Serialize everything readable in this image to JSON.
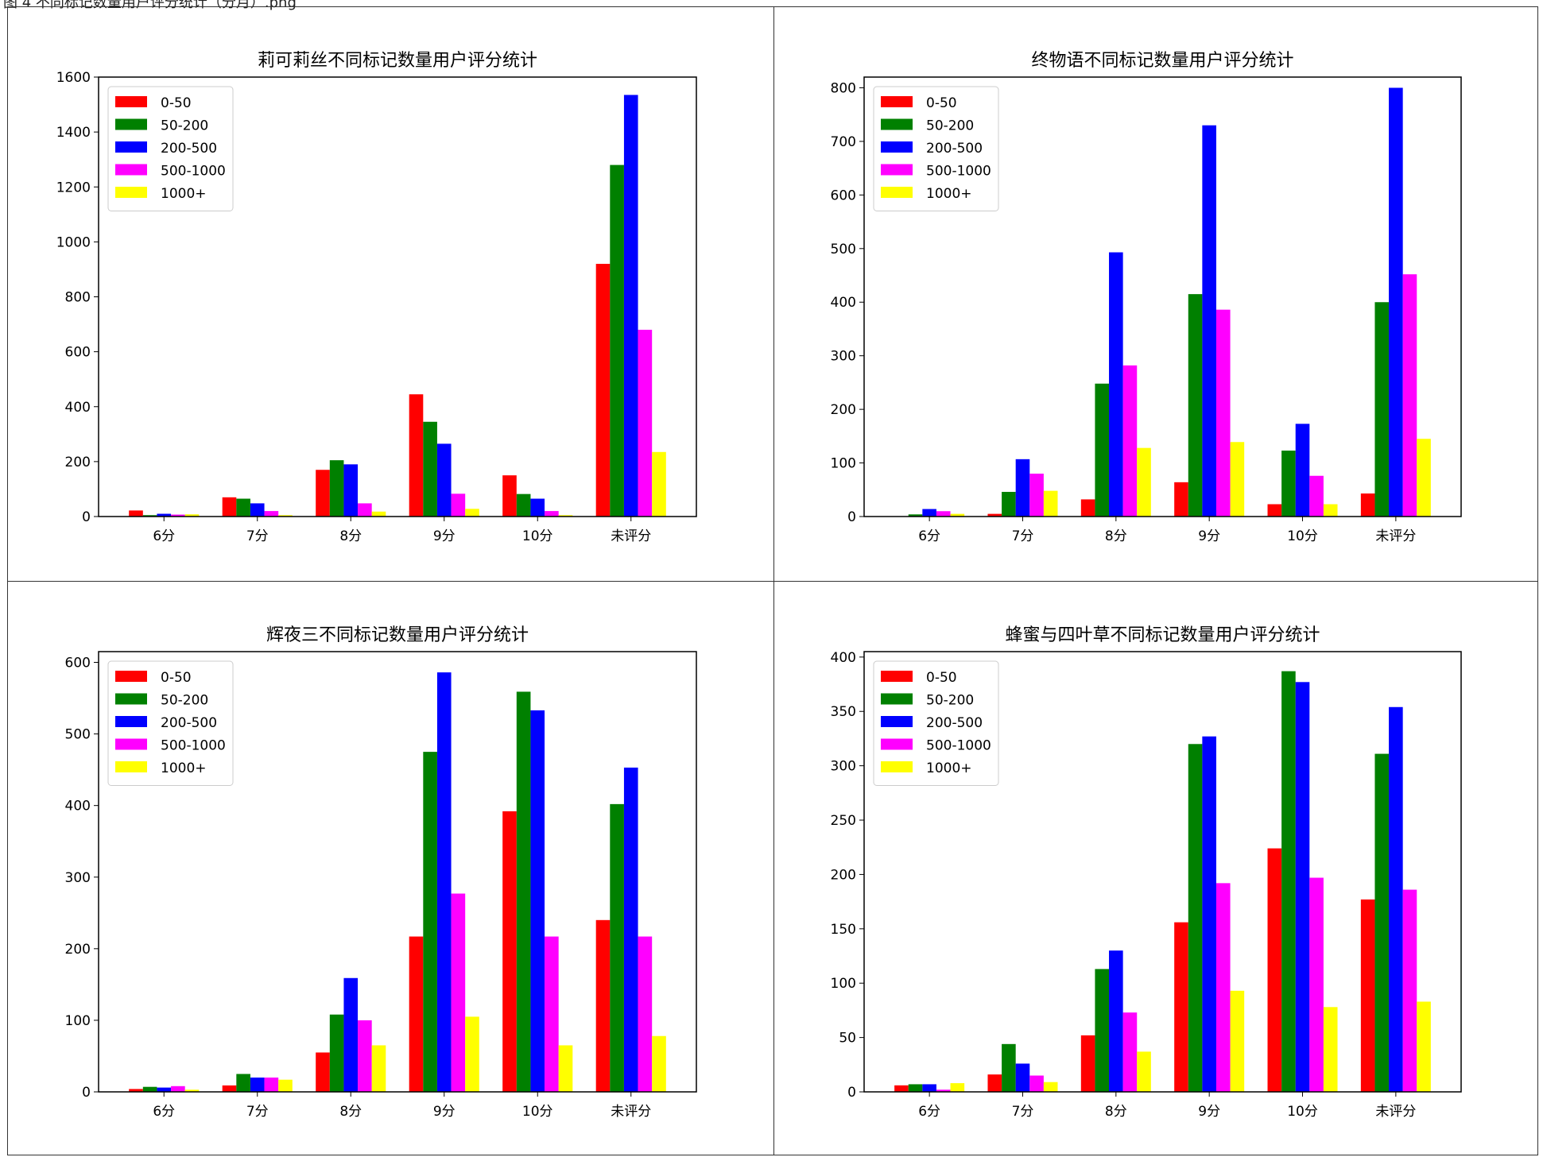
{
  "caption": "图 4 不同标记数量用户评分统计（分月）.png",
  "chart_data": [
    {
      "type": "bar",
      "title": "莉可莉丝不同标记数量用户评分统计",
      "categories": [
        "6分",
        "7分",
        "8分",
        "9分",
        "10分",
        "未评分"
      ],
      "ylim": [
        0,
        1600
      ],
      "yticks": [
        0,
        200,
        400,
        600,
        800,
        1000,
        1200,
        1400,
        1600
      ],
      "legend_position": "top-left",
      "series": [
        {
          "name": "0-50",
          "color": "#ff0000",
          "values": [
            22,
            70,
            170,
            445,
            150,
            920
          ]
        },
        {
          "name": "50-200",
          "color": "#008000",
          "values": [
            5,
            65,
            205,
            345,
            82,
            1280
          ]
        },
        {
          "name": "200-500",
          "color": "#0000ff",
          "values": [
            10,
            48,
            190,
            265,
            65,
            1535
          ]
        },
        {
          "name": "500-1000",
          "color": "#ff00ff",
          "values": [
            7,
            20,
            48,
            83,
            20,
            680
          ]
        },
        {
          "name": "1000+",
          "color": "#ffff00",
          "values": [
            8,
            5,
            18,
            28,
            5,
            235
          ]
        }
      ]
    },
    {
      "type": "bar",
      "title": "终物语不同标记数量用户评分统计",
      "categories": [
        "6分",
        "7分",
        "8分",
        "9分",
        "10分",
        "未评分"
      ],
      "ylim": [
        0,
        820
      ],
      "yticks": [
        0,
        100,
        200,
        300,
        400,
        500,
        600,
        700,
        800
      ],
      "legend_position": "top-left",
      "series": [
        {
          "name": "0-50",
          "color": "#ff0000",
          "values": [
            0,
            5,
            32,
            64,
            23,
            43
          ]
        },
        {
          "name": "50-200",
          "color": "#008000",
          "values": [
            4,
            46,
            248,
            415,
            123,
            400
          ]
        },
        {
          "name": "200-500",
          "color": "#0000ff",
          "values": [
            14,
            107,
            493,
            730,
            173,
            800
          ]
        },
        {
          "name": "500-1000",
          "color": "#ff00ff",
          "values": [
            10,
            80,
            282,
            386,
            76,
            452
          ]
        },
        {
          "name": "1000+",
          "color": "#ffff00",
          "values": [
            5,
            48,
            128,
            139,
            23,
            145
          ]
        }
      ]
    },
    {
      "type": "bar",
      "title": "辉夜三不同标记数量用户评分统计",
      "categories": [
        "6分",
        "7分",
        "8分",
        "9分",
        "10分",
        "未评分"
      ],
      "ylim": [
        0,
        615
      ],
      "yticks": [
        0,
        100,
        200,
        300,
        400,
        500,
        600
      ],
      "legend_position": "top-left",
      "series": [
        {
          "name": "0-50",
          "color": "#ff0000",
          "values": [
            4,
            9,
            55,
            217,
            392,
            240
          ]
        },
        {
          "name": "50-200",
          "color": "#008000",
          "values": [
            7,
            25,
            108,
            475,
            559,
            402
          ]
        },
        {
          "name": "200-500",
          "color": "#0000ff",
          "values": [
            6,
            20,
            159,
            586,
            533,
            453
          ]
        },
        {
          "name": "500-1000",
          "color": "#ff00ff",
          "values": [
            8,
            20,
            100,
            277,
            217,
            217
          ]
        },
        {
          "name": "1000+",
          "color": "#ffff00",
          "values": [
            3,
            17,
            65,
            105,
            65,
            78
          ]
        }
      ]
    },
    {
      "type": "bar",
      "title": "蜂蜜与四叶草不同标记数量用户评分统计",
      "categories": [
        "6分",
        "7分",
        "8分",
        "9分",
        "10分",
        "未评分"
      ],
      "ylim": [
        0,
        405
      ],
      "yticks": [
        0,
        50,
        100,
        150,
        200,
        250,
        300,
        350,
        400
      ],
      "legend_position": "top-left",
      "series": [
        {
          "name": "0-50",
          "color": "#ff0000",
          "values": [
            6,
            16,
            52,
            156,
            224,
            177
          ]
        },
        {
          "name": "50-200",
          "color": "#008000",
          "values": [
            7,
            44,
            113,
            320,
            387,
            311
          ]
        },
        {
          "name": "200-500",
          "color": "#0000ff",
          "values": [
            7,
            26,
            130,
            327,
            377,
            354
          ]
        },
        {
          "name": "500-1000",
          "color": "#ff00ff",
          "values": [
            2,
            15,
            73,
            192,
            197,
            186
          ]
        },
        {
          "name": "1000+",
          "color": "#ffff00",
          "values": [
            8,
            9,
            37,
            93,
            78,
            83
          ]
        }
      ]
    }
  ]
}
